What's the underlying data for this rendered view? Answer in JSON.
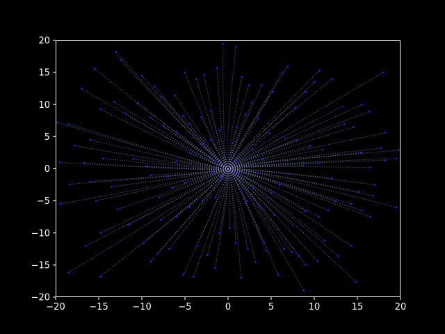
{
  "figure": {
    "background": "#000000",
    "foreground": "#ffffff"
  },
  "chart_data": {
    "type": "scatter",
    "style": "radial trajectories: dotted trails from the origin ending in blue points",
    "title": "",
    "xlabel": "",
    "ylabel": "",
    "xlim": [
      -20,
      20
    ],
    "ylim": [
      -20,
      20
    ],
    "grid": false,
    "legend": "none",
    "x_ticks": [
      -20,
      -15,
      -10,
      -5,
      0,
      5,
      10,
      15,
      20
    ],
    "y_ticks": [
      -20,
      -15,
      -10,
      -5,
      0,
      5,
      10,
      15,
      20
    ],
    "x_tick_labels": [
      "−20",
      "−15",
      "−10",
      "−5",
      "0",
      "5",
      "10",
      "15",
      "20"
    ],
    "y_tick_labels": [
      "−20",
      "−15",
      "−10",
      "−5",
      "0",
      "5",
      "10",
      "15",
      "20"
    ],
    "trail_color": "#8c8cd6",
    "point_color": "#1a1aff",
    "series": [
      {
        "values": [
          [
            -17.0,
            12.5
          ],
          [
            -13.0,
            18.2
          ],
          [
            -12.5,
            17.0
          ],
          [
            -15.5,
            15.6
          ],
          [
            -19.8,
            7.2
          ],
          [
            -18.5,
            7.0
          ],
          [
            -14.8,
            9.3
          ],
          [
            -13.2,
            10.4
          ],
          [
            -12.0,
            8.6
          ],
          [
            -16.0,
            4.5
          ],
          [
            -17.8,
            3.6
          ],
          [
            -19.5,
            1.0
          ],
          [
            -16.7,
            0.9
          ],
          [
            -14.5,
            1.6
          ],
          [
            -11.0,
            1.5
          ],
          [
            -9.5,
            0.4
          ],
          [
            -18.4,
            -2.4
          ],
          [
            -16.0,
            -2.0
          ],
          [
            -13.5,
            -2.8
          ],
          [
            -15.3,
            -5.0
          ],
          [
            -12.8,
            -6.3
          ],
          [
            -19.5,
            -5.5
          ],
          [
            -11.5,
            -8.7
          ],
          [
            -14.8,
            -10.0
          ],
          [
            -16.5,
            -12.0
          ],
          [
            -18.5,
            -16.2
          ],
          [
            -14.8,
            -16.8
          ],
          [
            -9.8,
            -11.6
          ],
          [
            -9.0,
            -14.5
          ],
          [
            -8.2,
            -13.2
          ],
          [
            -6.8,
            -12.5
          ],
          [
            -5.2,
            -16.5
          ],
          [
            -4.0,
            -16.8
          ],
          [
            -3.6,
            -12.0
          ],
          [
            -2.4,
            -13.5
          ],
          [
            -1.5,
            -15.5
          ],
          [
            -1.0,
            -10.0
          ],
          [
            0.2,
            -9.3
          ],
          [
            0.9,
            -11.6
          ],
          [
            1.5,
            -17.0
          ],
          [
            2.3,
            -12.5
          ],
          [
            3.2,
            -14.5
          ],
          [
            4.1,
            -11.3
          ],
          [
            4.4,
            -12.8
          ],
          [
            5.8,
            -16.5
          ],
          [
            6.5,
            -12.5
          ],
          [
            7.4,
            -13.0
          ],
          [
            8.2,
            -13.6
          ],
          [
            8.8,
            -19.0
          ],
          [
            9.0,
            -15.0
          ],
          [
            10.4,
            -14.4
          ],
          [
            11.2,
            -11.2
          ],
          [
            12.8,
            -13.6
          ],
          [
            14.3,
            -12.0
          ],
          [
            14.8,
            -17.6
          ],
          [
            16.5,
            -7.5
          ],
          [
            15.5,
            -6.5
          ],
          [
            14.3,
            -5.5
          ],
          [
            15.2,
            -3.6
          ],
          [
            16.8,
            -4.2
          ],
          [
            17.0,
            -2.5
          ],
          [
            19.5,
            -6.0
          ],
          [
            12.5,
            -5.0
          ],
          [
            11.6,
            -6.5
          ],
          [
            10.5,
            -7.5
          ],
          [
            9.0,
            -6.6
          ],
          [
            7.5,
            -8.8
          ],
          [
            5.4,
            -7.2
          ],
          [
            3.8,
            -6.1
          ],
          [
            12.1,
            -1.5
          ],
          [
            16.5,
            0.2
          ],
          [
            18.2,
            1.3
          ],
          [
            19.5,
            1.6
          ],
          [
            15.5,
            2.5
          ],
          [
            17.8,
            3.2
          ],
          [
            19.8,
            2.9
          ],
          [
            18.2,
            5.6
          ],
          [
            14.6,
            6.5
          ],
          [
            13.5,
            7.0
          ],
          [
            16.4,
            8.9
          ],
          [
            15.6,
            10.0
          ],
          [
            13.2,
            9.7
          ],
          [
            12.1,
            14.0
          ],
          [
            10.6,
            15.3
          ],
          [
            10.0,
            13.5
          ],
          [
            9.0,
            12.0
          ],
          [
            18.0,
            15.0
          ],
          [
            7.8,
            9.5
          ],
          [
            6.9,
            15.9
          ],
          [
            6.3,
            15.0
          ],
          [
            5.2,
            12.0
          ],
          [
            3.9,
            13.0
          ],
          [
            2.8,
            10.4
          ],
          [
            2.4,
            13.0
          ],
          [
            1.6,
            14.3
          ],
          [
            0.9,
            19.0
          ],
          [
            -0.6,
            19.5
          ],
          [
            -1.3,
            15.8
          ],
          [
            -2.8,
            14.6
          ],
          [
            -3.7,
            14.0
          ],
          [
            -5.0,
            15.0
          ],
          [
            -6.2,
            11.5
          ],
          [
            -7.6,
            11.2
          ],
          [
            -8.5,
            12.8
          ],
          [
            -10.0,
            14.5
          ],
          [
            -10.5,
            10.2
          ],
          [
            -9.0,
            8.0
          ],
          [
            -7.5,
            6.7
          ],
          [
            -6.0,
            5.8
          ],
          [
            -5.2,
            8.2
          ],
          [
            -4.5,
            7.0
          ],
          [
            -3.1,
            8.0
          ],
          [
            -2.0,
            9.0
          ],
          [
            -1.0,
            6.0
          ],
          [
            1.0,
            6.5
          ],
          [
            2.0,
            8.5
          ],
          [
            3.5,
            7.8
          ],
          [
            4.8,
            5.5
          ],
          [
            6.5,
            5.0
          ],
          [
            8.0,
            4.5
          ],
          [
            9.5,
            3.5
          ],
          [
            11.0,
            3.0
          ],
          [
            10.5,
            0.8
          ],
          [
            8.7,
            0.5
          ],
          [
            7.0,
            -0.8
          ],
          [
            6.0,
            -2.5
          ],
          [
            5.0,
            -3.8
          ],
          [
            3.0,
            -3.0
          ],
          [
            2.2,
            -5.0
          ],
          [
            1.5,
            -3.5
          ],
          [
            -1.5,
            -4.5
          ],
          [
            -3.0,
            -5.0
          ],
          [
            -4.5,
            -6.0
          ],
          [
            -6.0,
            -7.5
          ],
          [
            -7.8,
            -8.0
          ],
          [
            -8.0,
            -4.5
          ],
          [
            -6.5,
            -3.0
          ],
          [
            -5.0,
            -2.2
          ],
          [
            -7.0,
            -1.2
          ],
          [
            -9.0,
            -1.0
          ],
          [
            -6.0,
            1.2
          ],
          [
            -4.5,
            2.5
          ],
          [
            -3.0,
            3.8
          ],
          [
            -2.0,
            4.5
          ],
          [
            0.5,
            4.0
          ],
          [
            2.8,
            3.0
          ],
          [
            4.0,
            1.5
          ],
          [
            3.5,
            -0.6
          ],
          [
            -2.2,
            1.8
          ],
          [
            -1.2,
            1.0
          ],
          [
            0.8,
            1.2
          ],
          [
            1.2,
            -0.6
          ],
          [
            -0.8,
            -1.4
          ],
          [
            -1.8,
            -0.4
          ]
        ]
      }
    ]
  }
}
